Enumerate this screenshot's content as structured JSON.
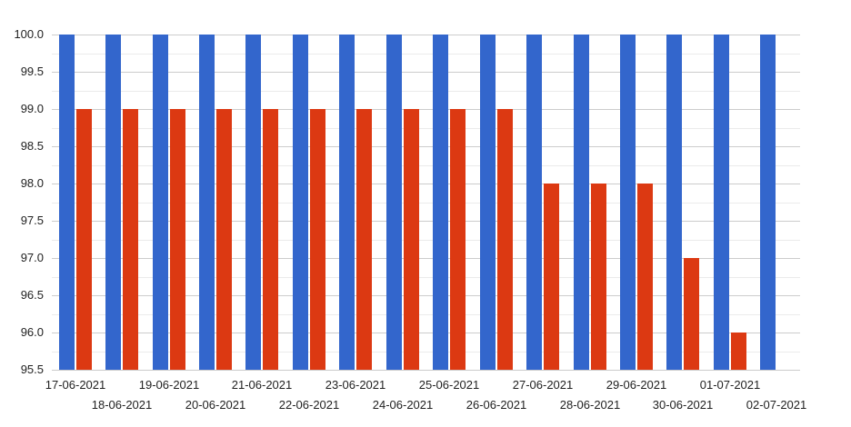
{
  "chart_data": {
    "type": "bar",
    "title": "",
    "xlabel": "",
    "ylabel": "",
    "legend": "none",
    "grid": true,
    "categories": [
      "17-06-2021",
      "18-06-2021",
      "19-06-2021",
      "20-06-2021",
      "21-06-2021",
      "22-06-2021",
      "23-06-2021",
      "24-06-2021",
      "25-06-2021",
      "26-06-2021",
      "27-06-2021",
      "28-06-2021",
      "29-06-2021",
      "30-06-2021",
      "01-07-2021",
      "02-07-2021"
    ],
    "series": [
      {
        "name": "blue",
        "color": "#3366cc",
        "values": [
          100,
          100,
          100,
          100,
          100,
          100,
          100,
          100,
          100,
          100,
          100,
          100,
          100,
          100,
          100,
          100
        ]
      },
      {
        "name": "red",
        "color": "#dc3912",
        "values": [
          99,
          99,
          99,
          99,
          99,
          99,
          99,
          99,
          99,
          99,
          98,
          98,
          98,
          97,
          96,
          null
        ]
      }
    ],
    "ylim": [
      95.5,
      100.0
    ],
    "y_major_step": 0.5,
    "y_minor_step": 0.25,
    "y_tick_labels": [
      "95.5",
      "96.0",
      "96.5",
      "97.0",
      "97.5",
      "98.0",
      "98.5",
      "99.0",
      "99.5",
      "100.0"
    ],
    "x_label_layout": "staggered-two-rows"
  },
  "colors": {
    "background": "#ffffff",
    "grid_major": "#cccccc",
    "grid_minor": "#ebebeb",
    "axis_text": "#222222",
    "bar_blue": "#3366cc",
    "bar_red": "#dc3912"
  }
}
